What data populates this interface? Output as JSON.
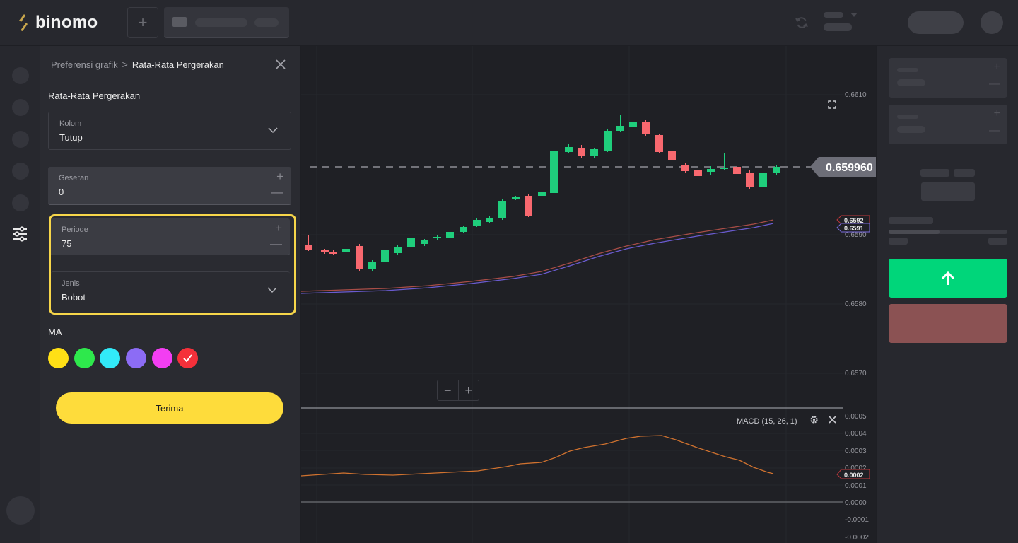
{
  "header": {
    "logo_text": "binomo",
    "add_tab_label": "+"
  },
  "panel": {
    "breadcrumb_parent": "Preferensi grafik",
    "breadcrumb_separator": ">",
    "breadcrumb_current": "Rata-Rata Pergerakan",
    "section_title": "Rata-Rata Pergerakan",
    "fields": {
      "column": {
        "label": "Kolom",
        "value": "Tutup"
      },
      "offset": {
        "label": "Geseran",
        "value": "0"
      },
      "period": {
        "label": "Periode",
        "value": "75"
      },
      "type": {
        "label": "Jenis",
        "value": "Bobot"
      }
    },
    "ma_label": "MA",
    "colors": [
      {
        "name": "yellow",
        "hex": "#ffe016",
        "selected": false
      },
      {
        "name": "green",
        "hex": "#2ee84c",
        "selected": false
      },
      {
        "name": "cyan",
        "hex": "#32eaf8",
        "selected": false
      },
      {
        "name": "violet",
        "hex": "#8c6cf5",
        "selected": false
      },
      {
        "name": "magenta",
        "hex": "#f33ef2",
        "selected": false
      },
      {
        "name": "red",
        "hex": "#f5303a",
        "selected": true
      }
    ],
    "accept_label": "Terima",
    "plus_symbol": "+",
    "minus_symbol": "—"
  },
  "chart": {
    "current_price": "0.659960",
    "ma_tag_1": "0.6592",
    "ma_tag_2": "0.6591",
    "macd_tag": "0.0002",
    "macd_label": "MACD (15, 26, 1)",
    "price_axis": [
      "0.6610",
      "0.6590",
      "0.6580",
      "0.6570"
    ],
    "macd_axis": [
      "0.0005",
      "0.0004",
      "0.0003",
      "0.0002",
      "0.0001",
      "0.0000",
      "-0.0001",
      "-0.0002"
    ],
    "zoom_out": "−",
    "zoom_in": "+"
  },
  "colors": {
    "bull": "#1fce7c",
    "bear": "#f8686f",
    "accent": "#fedc3b",
    "call": "#00d67a",
    "put": "#8b5253"
  }
}
